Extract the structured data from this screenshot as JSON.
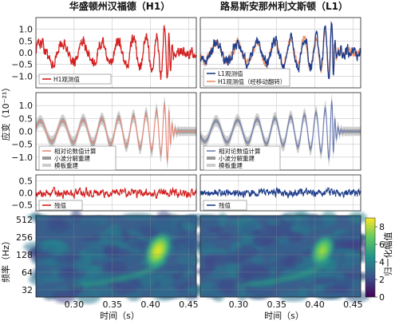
{
  "chart_data": {
    "type": "line",
    "titles": {
      "left": "华盛顿州汉福德（H1）",
      "right": "路易斯安那州利文斯顿（L1）"
    },
    "ylabel_strain": "应变（10⁻²¹）",
    "ylabel_freq": "频率（Hz）",
    "ylabel_colorbar": "归一化幅值",
    "xlabel": "时间（s）",
    "xlim": [
      0.25,
      0.46
    ],
    "x_ticks": [
      0.3,
      0.35,
      0.4,
      0.45
    ],
    "x_tick_labels": [
      "0.30",
      "0.35",
      "0.40",
      "0.45"
    ],
    "row1_ylim": [
      -1.5,
      1.5
    ],
    "row1_ticks": [
      "1.0",
      "0.5",
      "0.0",
      "−0.5",
      "−1.0"
    ],
    "row1_tick_values": [
      1.0,
      0.5,
      0.0,
      -0.5,
      -1.0
    ],
    "row2_ylim": [
      -1.5,
      1.5
    ],
    "row2_ticks": [
      "1.0",
      "0.5",
      "0.0",
      "−0.5",
      "−1.0"
    ],
    "row2_tick_values": [
      1.0,
      0.5,
      0.0,
      -0.5,
      -1.0
    ],
    "row3_ylim": [
      -0.75,
      0.75
    ],
    "row3_ticks": [
      "0.5",
      "0.0",
      "−0.5"
    ],
    "row3_tick_values": [
      0.5,
      0.0,
      -0.5
    ],
    "freq_ticks": [
      "512",
      "256",
      "128",
      "64",
      "32"
    ],
    "freq_tick_values": [
      512,
      256,
      128,
      64,
      32
    ],
    "freq_ylim": [
      24,
      600
    ],
    "colorbar_ticks": [
      "8",
      "6",
      "4",
      "2",
      "0"
    ],
    "colorbar_tick_values": [
      8,
      6,
      4,
      2,
      0
    ],
    "colorbar_range": [
      0,
      9
    ],
    "legends": {
      "h1_obs": "H1观测值",
      "l1_obs": "L1观测值",
      "h1_shifted": "H1观测值（经移动翻转）",
      "nr": "相对论数值计算",
      "wavelet": "小波分解重建",
      "template": "模板重建",
      "residual": "残值"
    },
    "colors": {
      "h1": "#d42020",
      "l1": "#1f3e8c",
      "h1_shifted": "#f08a5b",
      "nr_left": "#e48a7a",
      "nr_right": "#6e7db3",
      "band_dark": "#999999",
      "band_light": "#cccccc",
      "grid": "#c8c8c8"
    }
  }
}
